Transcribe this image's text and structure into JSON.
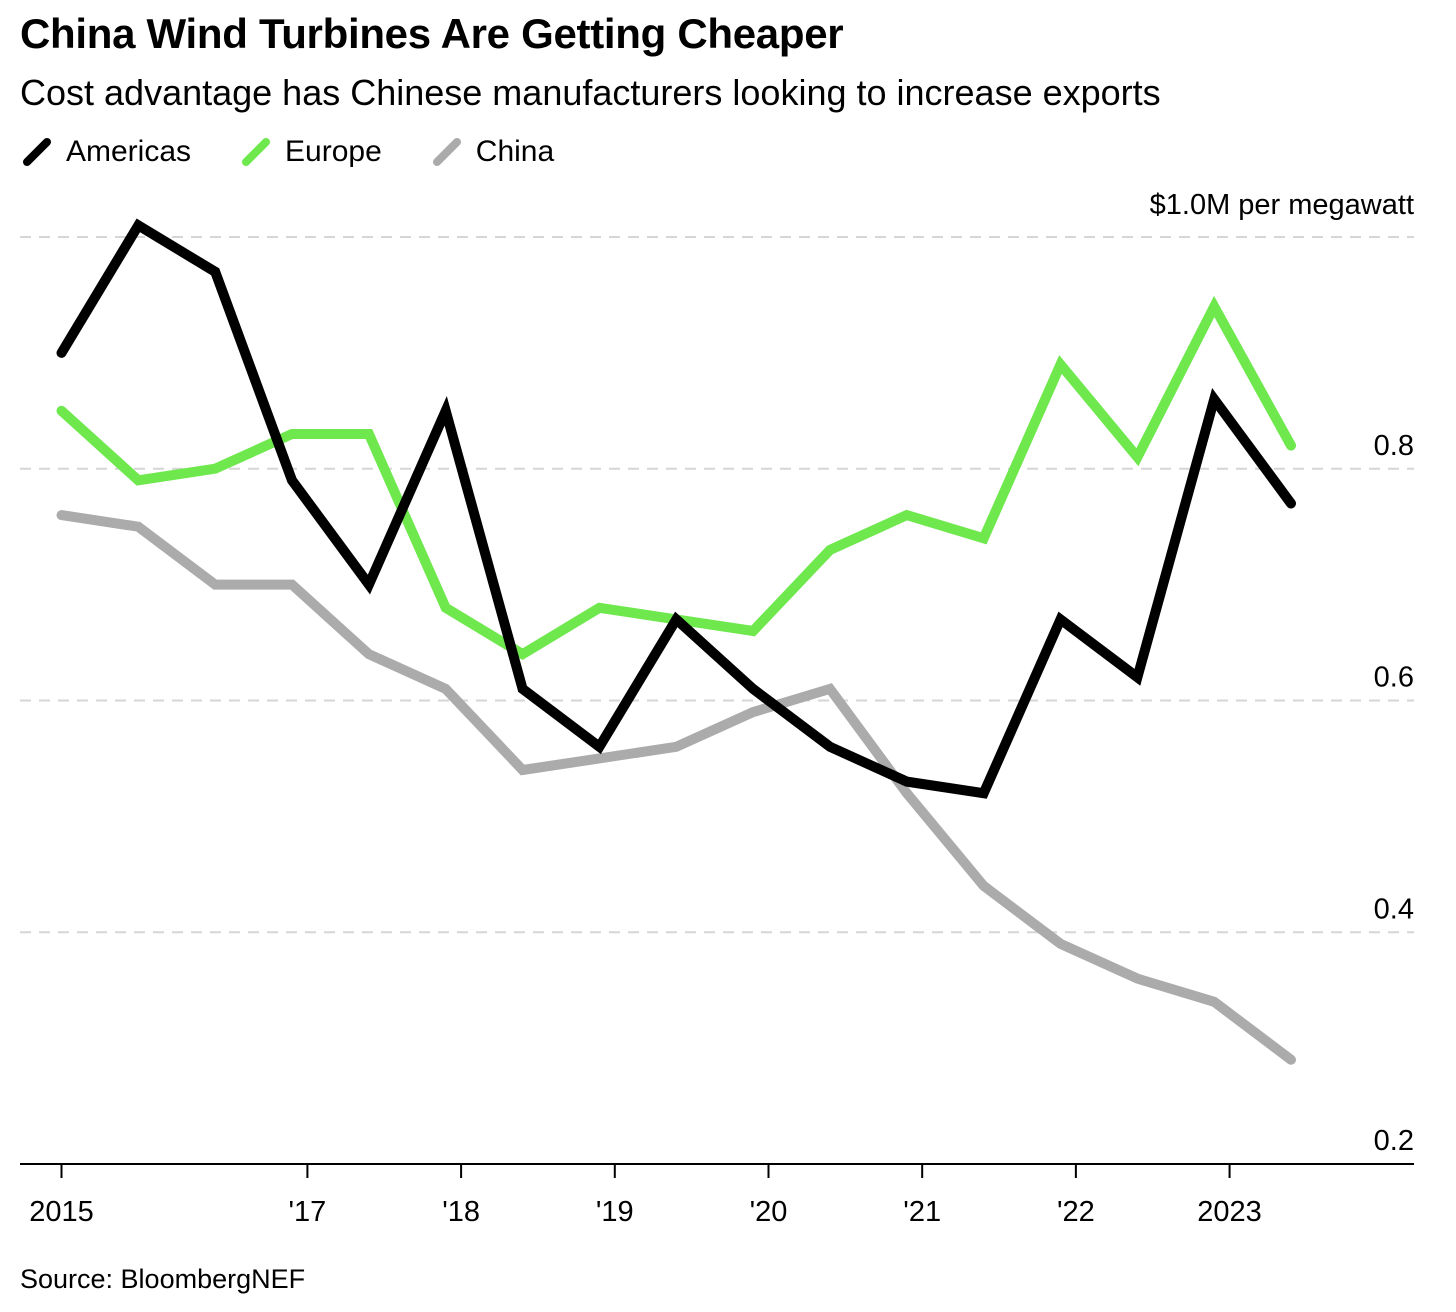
{
  "chart_data": {
    "type": "line",
    "title": "China Wind Turbines Are Getting Cheaper",
    "subtitle": "Cost advantage has Chinese manufacturers looking to increase exports",
    "unit_label": "$1.0M per megawatt",
    "source": "Source: BloombergNEF",
    "x": [
      2015.0,
      2015.5,
      2016.0,
      2016.5,
      2017.0,
      2017.5,
      2018.0,
      2018.5,
      2019.0,
      2019.5,
      2020.0,
      2020.5,
      2021.0,
      2021.5,
      2022.0,
      2022.5,
      2023.0
    ],
    "x_ticks": [
      {
        "value": 2015,
        "label": "2015"
      },
      {
        "value": 2016.6,
        "label": "'17"
      },
      {
        "value": 2017.6,
        "label": "'18"
      },
      {
        "value": 2018.6,
        "label": "'19"
      },
      {
        "value": 2019.6,
        "label": "'20"
      },
      {
        "value": 2020.6,
        "label": "'21"
      },
      {
        "value": 2021.6,
        "label": "'22"
      },
      {
        "value": 2022.6,
        "label": "2023"
      }
    ],
    "y_ticks": [
      {
        "value": 0.2,
        "label": "0.2"
      },
      {
        "value": 0.4,
        "label": "0.4"
      },
      {
        "value": 0.6,
        "label": "0.6"
      },
      {
        "value": 0.8,
        "label": "0.8"
      },
      {
        "value": 1.0,
        "label": ""
      }
    ],
    "ylim": [
      0.2,
      1.0
    ],
    "xlim": [
      2014.73,
      2023.8
    ],
    "grid": true,
    "legend_position": "top-left",
    "series": [
      {
        "name": "Americas",
        "color": "#000000",
        "values": [
          0.9,
          1.01,
          0.97,
          0.79,
          0.7,
          0.85,
          0.61,
          0.56,
          0.67,
          0.61,
          0.56,
          0.53,
          0.52,
          0.67,
          0.62,
          0.86,
          0.77
        ]
      },
      {
        "name": "Europe",
        "color": "#6ee84d",
        "values": [
          0.85,
          0.79,
          0.8,
          0.83,
          0.83,
          0.68,
          0.64,
          0.68,
          0.67,
          0.66,
          0.73,
          0.76,
          0.74,
          0.89,
          0.81,
          0.94,
          0.82
        ]
      },
      {
        "name": "China",
        "color": "#ababab",
        "values": [
          0.76,
          0.75,
          0.7,
          0.7,
          0.64,
          0.61,
          0.54,
          0.55,
          0.56,
          0.59,
          0.61,
          0.52,
          0.44,
          0.39,
          0.36,
          0.34,
          0.29
        ]
      }
    ]
  }
}
